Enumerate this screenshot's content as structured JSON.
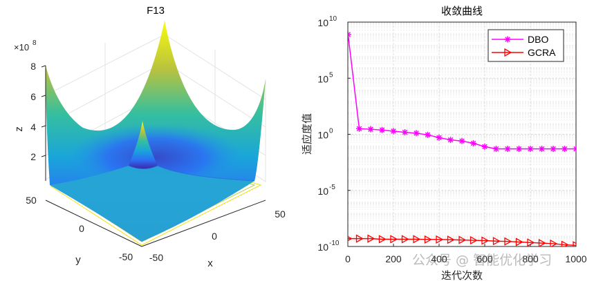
{
  "chart_data": [
    {
      "type": "surface3d",
      "title": "F13",
      "xlabel": "x",
      "ylabel": "y",
      "zlabel": "z",
      "z_multiplier_label": "×10",
      "z_multiplier_exp": "8",
      "x_ticks": [
        "-50",
        "0",
        "50"
      ],
      "y_ticks": [
        "-50",
        "0",
        "50"
      ],
      "z_ticks": [
        "2",
        "4",
        "6",
        "8"
      ],
      "x_range": [
        -50,
        50
      ],
      "y_range": [
        -50,
        50
      ],
      "z_range": [
        0,
        8
      ],
      "colormap": "parula",
      "contour_projection": true
    },
    {
      "type": "line",
      "title": "收敛曲线",
      "xlabel": "迭代次数",
      "ylabel": "适应度值",
      "xlim": [
        0,
        1000
      ],
      "ylim_log10": [
        -10,
        10
      ],
      "y_scale": "log",
      "grid": true,
      "x_ticks": [
        "0",
        "200",
        "400",
        "600",
        "800",
        "1000"
      ],
      "y_tick_base": "10",
      "y_tick_exps": [
        "10",
        "5",
        "0",
        "-5",
        "-10"
      ],
      "legend_position": "top-right",
      "series": [
        {
          "name": "DBO",
          "color": "#ff00ff",
          "marker": "asterisk",
          "x": [
            1,
            50,
            100,
            150,
            200,
            250,
            300,
            350,
            400,
            450,
            500,
            550,
            600,
            650,
            700,
            750,
            800,
            850,
            900,
            950,
            1000
          ],
          "log10_y": [
            8.9,
            0.5,
            0.45,
            0.38,
            0.28,
            0.18,
            0.1,
            -0.05,
            -0.3,
            -0.5,
            -0.6,
            -0.8,
            -1.1,
            -1.3,
            -1.3,
            -1.3,
            -1.3,
            -1.3,
            -1.3,
            -1.3,
            -1.3
          ]
        },
        {
          "name": "GCRA",
          "color": "#ff0000",
          "marker": "triangle-right",
          "x": [
            1,
            50,
            100,
            150,
            200,
            250,
            300,
            350,
            400,
            450,
            500,
            550,
            600,
            650,
            700,
            750,
            800,
            850,
            900,
            950,
            1000
          ],
          "log10_y": [
            -9.3,
            -9.3,
            -9.3,
            -9.35,
            -9.35,
            -9.35,
            -9.35,
            -9.38,
            -9.38,
            -9.4,
            -9.42,
            -9.45,
            -9.48,
            -9.52,
            -9.55,
            -9.6,
            -9.65,
            -9.7,
            -9.75,
            -9.85,
            -9.9
          ]
        }
      ]
    }
  ],
  "watermark": "公众号 @ 智能优化学习"
}
